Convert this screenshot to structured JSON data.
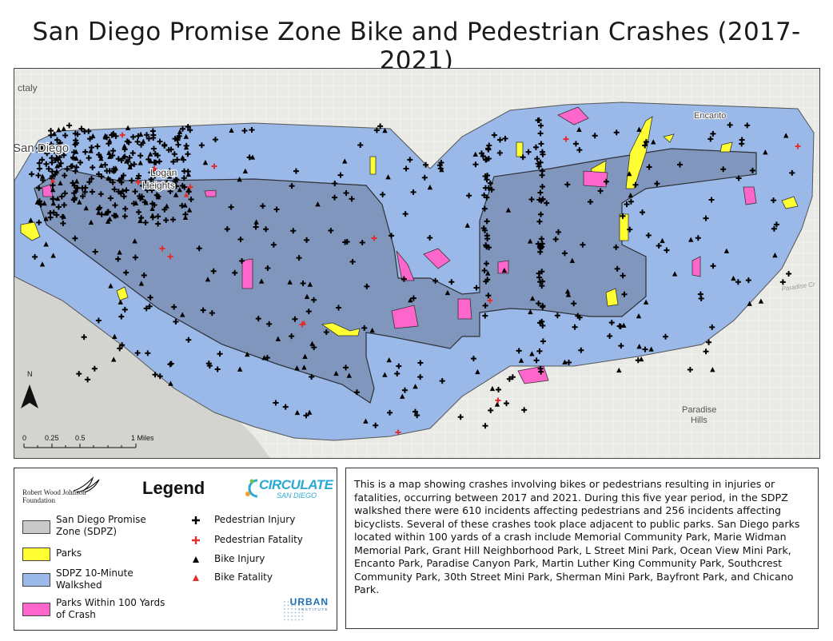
{
  "title": "San Diego Promise Zone Bike and Pedestrian Crashes (2017-2021)",
  "map": {
    "place_labels": {
      "city": "San Diego",
      "logan": "Logan",
      "heights": "Heights",
      "encanto": "Encanto",
      "paradise": "Paradise",
      "hills": "Hills",
      "national_city_partial": "ctaly",
      "road": "Paradise Cr"
    },
    "north_label": "N",
    "scale_bar": {
      "ticks": [
        "0",
        "0.25",
        "0.5",
        "1 Miles"
      ]
    },
    "colors": {
      "walkshed": "#9ab9e8",
      "sdpz": "#7f93b8",
      "parks": "#ffff33",
      "parks_near_crash": "#ff66cc",
      "basemap": "#e9e9e6",
      "water": "#c9c9c6"
    }
  },
  "legend": {
    "title": "Legend",
    "rwjf_line1": "Robert Wood Johnson",
    "rwjf_line2": "Foundation",
    "circulate_main": "CIRCULATE",
    "circulate_sub": "SAN DIEGO",
    "urban_main": "URBAN",
    "urban_sub": "INSTITUTE",
    "area_items": [
      {
        "label": "San Diego Promise Zone (SDPZ)",
        "color": "#c9c9c9"
      },
      {
        "label": "Parks",
        "color": "#ffff33"
      },
      {
        "label": "SDPZ 10-Minute Walkshed",
        "color": "#9ab9e8"
      },
      {
        "label": "Parks Within 100 Yards of Crash",
        "color": "#ff66cc"
      }
    ],
    "point_items": [
      {
        "label": "Pedestrian Injury",
        "symbol": "black-cross-icon",
        "color": "#000000"
      },
      {
        "label": "Pedestrian Fatality",
        "symbol": "red-cross-icon",
        "color": "#e03030"
      },
      {
        "label": "Bike Injury",
        "symbol": "black-triangle-icon",
        "color": "#000000"
      },
      {
        "label": "Bike Fatality",
        "symbol": "red-triangle-icon",
        "color": "#e03030"
      }
    ]
  },
  "description": "This is a map showing crashes involving bikes or pedestrians resulting in injuries or fatalities, occurring between 2017 and 2021. During this five year period, in the SDPZ walkshed there were 610 incidents affecting pedestrians and 256 incidents affecting bicyclists. Several of these crashes took place adjacent to public parks. San Diego parks located within 100 yards of a crash include Memorial Community Park, Marie Widman Memorial Park, Grant Hill Neighborhood Park, L Street Mini Park, Ocean View Mini Park, Encanto Park, Paradise Canyon Park, Martin Luther King Community Park, Southcrest Community Park, 30th Street Mini Park, Sherman Mini Park, Bayfront Park, and Chicano Park."
}
